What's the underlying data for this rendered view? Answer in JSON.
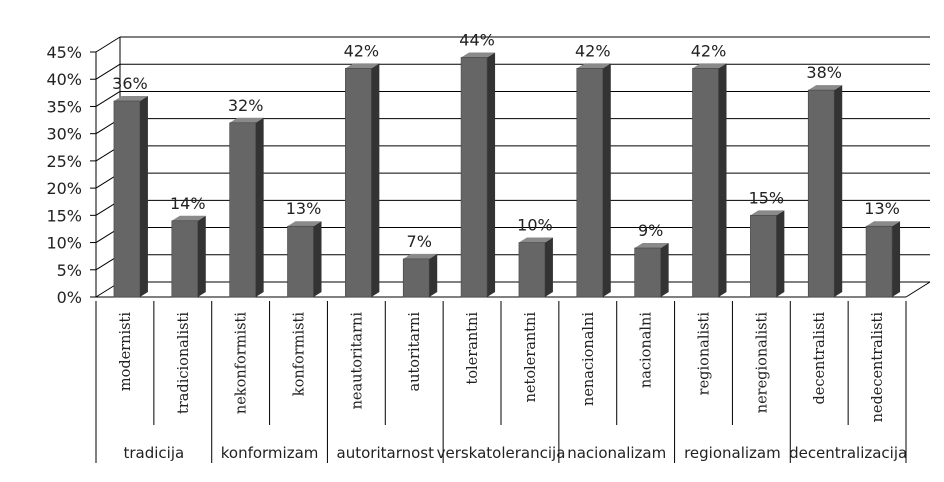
{
  "chart_data": {
    "type": "bar",
    "title": "",
    "xlabel": "",
    "ylabel": "",
    "ylim": [
      0,
      45
    ],
    "yticks": [
      "0%",
      "5%",
      "10%",
      "15%",
      "20%",
      "25%",
      "30%",
      "35%",
      "40%",
      "45%"
    ],
    "grid": true,
    "legend": "none",
    "bar_style": "3d",
    "colors": {
      "bar_front": "#666666",
      "bar_side": "#333333",
      "bar_top": "#8a8a8a",
      "grid": "#000000"
    },
    "categories": [
      "modernisti",
      "tradicionalisti",
      "nekonformisti",
      "konformisti",
      "neautoritarni",
      "autoritarni",
      "tolerantni",
      "netolerantni",
      "nenacionalni",
      "nacionalni",
      "regionalisti",
      "neregionalisti",
      "decentralisti",
      "nedecentralisti"
    ],
    "values": [
      36,
      14,
      32,
      13,
      42,
      7,
      44,
      10,
      42,
      9,
      42,
      15,
      38,
      13
    ],
    "data_labels": [
      "36%",
      "14%",
      "32%",
      "13%",
      "42%",
      "7%",
      "44%",
      "10%",
      "42%",
      "9%",
      "42%",
      "15%",
      "38%",
      "13%"
    ],
    "groups": [
      {
        "label": "tradicija",
        "members": [
          "modernisti",
          "tradicionalisti"
        ]
      },
      {
        "label": "konformizam",
        "members": [
          "nekonformisti",
          "konformisti"
        ]
      },
      {
        "label": "autoritarnost",
        "members": [
          "neautoritarni",
          "autoritarni"
        ]
      },
      {
        "label": "verskatolerancija",
        "members": [
          "tolerantni",
          "netolerantni"
        ]
      },
      {
        "label": "nacionalizam",
        "members": [
          "nenacionalni",
          "nacionalni"
        ]
      },
      {
        "label": "regionalizam",
        "members": [
          "regionalisti",
          "neregionalisti"
        ]
      },
      {
        "label": "decentralizacija",
        "members": [
          "decentralisti",
          "nedecentralisti"
        ]
      }
    ]
  }
}
